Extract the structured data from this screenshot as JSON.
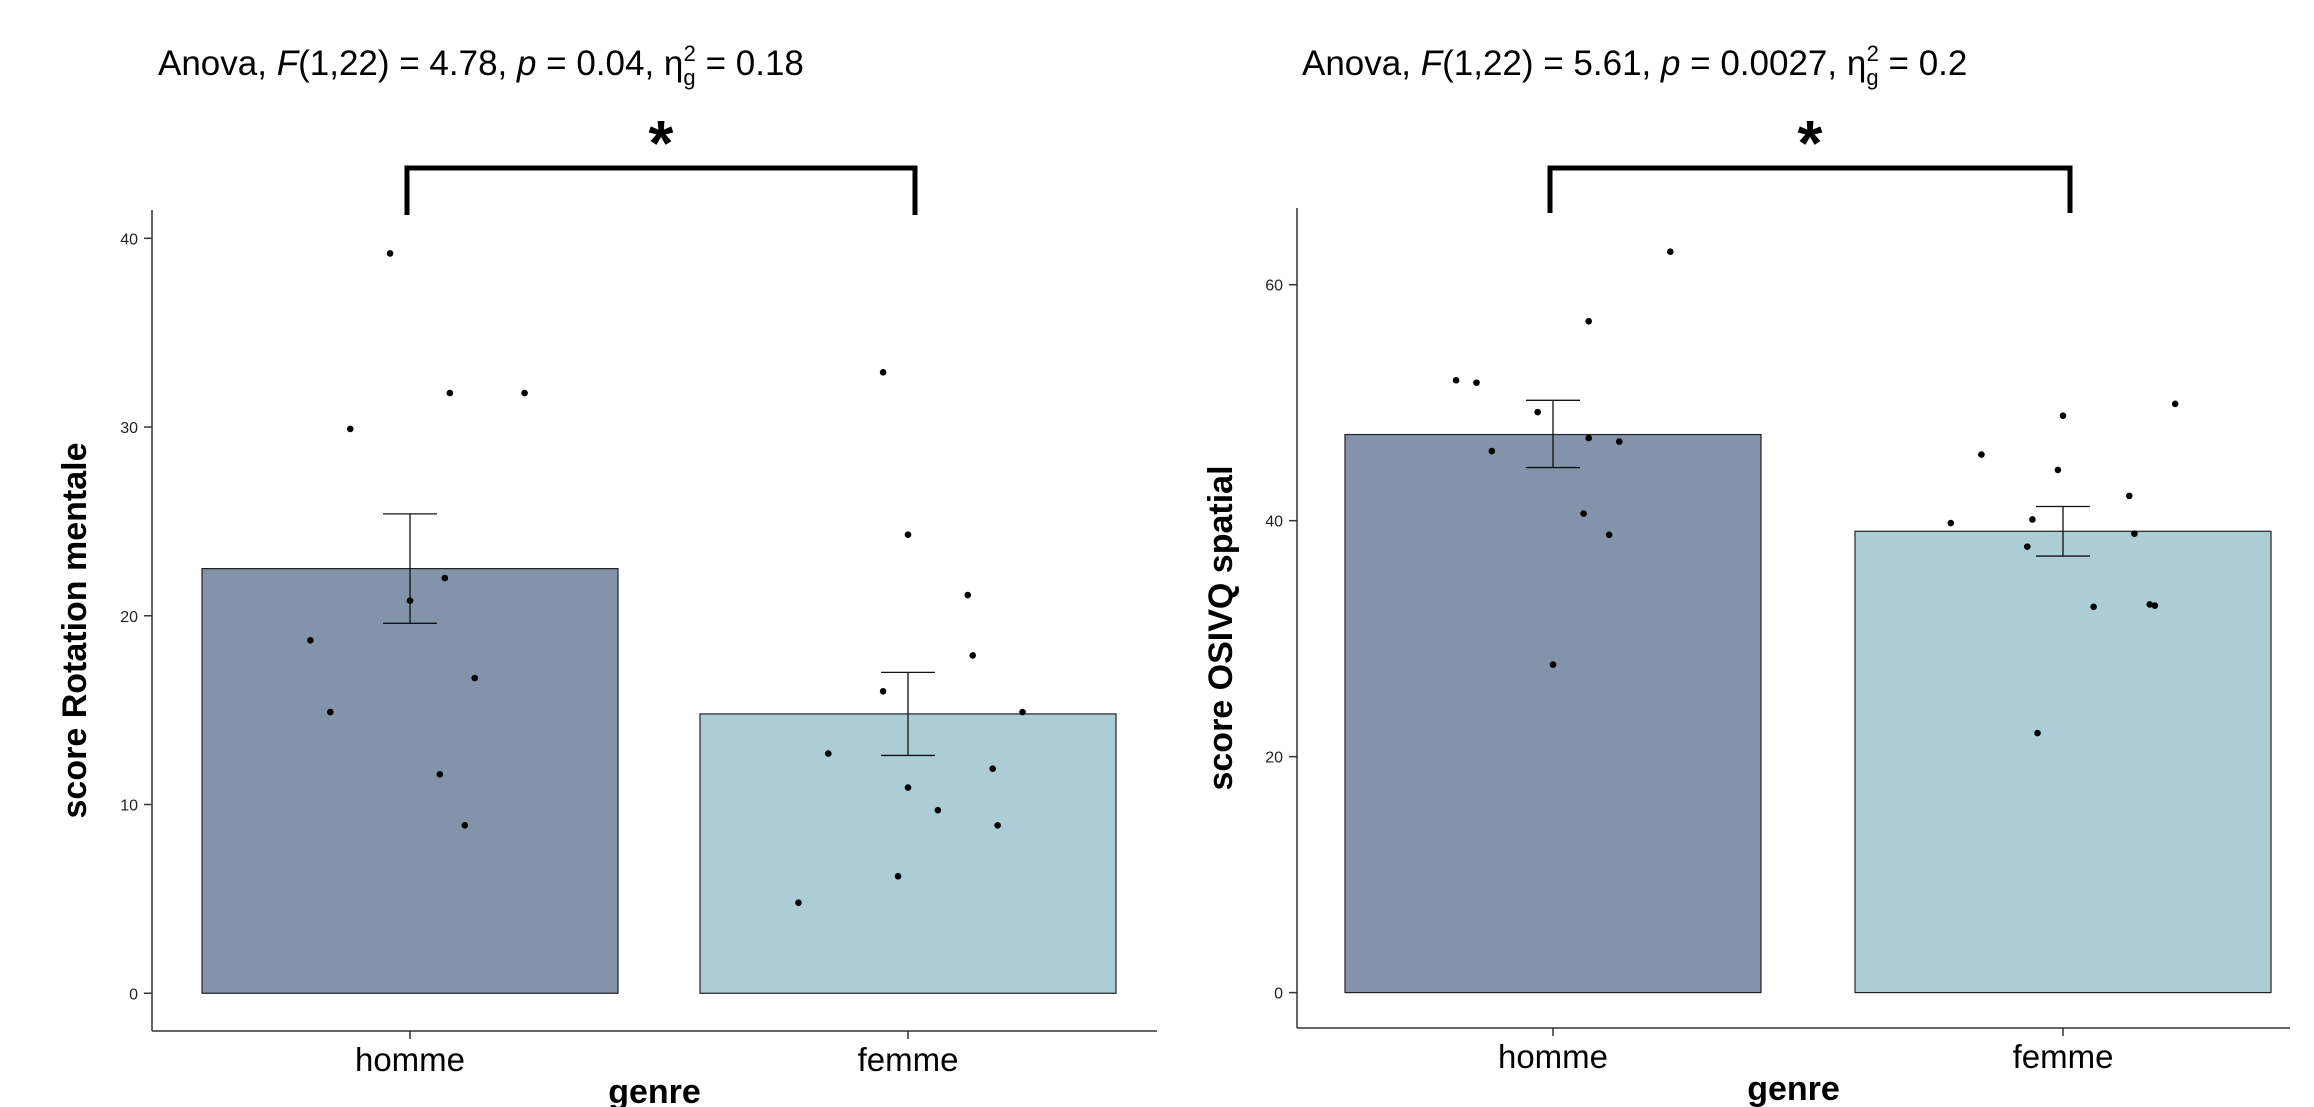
{
  "chart_data": [
    {
      "type": "bar",
      "title_parts": [
        "Anova, ",
        "F",
        "(1,22) = 4.78, ",
        "p",
        " = 0.04, η",
        "g",
        "2",
        " = 0.18"
      ],
      "xlabel": "genre",
      "ylabel": "score Rotation mentale",
      "categories": [
        "homme",
        "femme"
      ],
      "values": [
        22.5,
        14.8
      ],
      "error": [
        [
          19.6,
          25.4
        ],
        [
          12.6,
          17.0
        ]
      ],
      "colors": [
        "#8393AA",
        "#ADCDD6"
      ],
      "ylim": [
        -2,
        41.5
      ],
      "yticks": [
        0,
        10,
        20,
        30,
        40
      ],
      "significance": "*",
      "grid": false,
      "points": [
        {
          "x": -0.04,
          "y": 39.2
        },
        {
          "x": -0.12,
          "y": 29.9
        },
        {
          "x": 0.08,
          "y": 31.8
        },
        {
          "x": 0.23,
          "y": 31.8
        },
        {
          "x": 0.07,
          "y": 22.0
        },
        {
          "x": 0.0,
          "y": 20.8
        },
        {
          "x": -0.2,
          "y": 18.7
        },
        {
          "x": 0.13,
          "y": 16.7
        },
        {
          "x": -0.16,
          "y": 14.9
        },
        {
          "x": 0.06,
          "y": 11.6
        },
        {
          "x": 0.11,
          "y": 8.9
        },
        {
          "x": -0.05,
          "y": 32.9
        },
        {
          "x": 0.0,
          "y": 24.3
        },
        {
          "x": 0.12,
          "y": 21.1
        },
        {
          "x": 0.13,
          "y": 17.9
        },
        {
          "x": -0.05,
          "y": 16.0
        },
        {
          "x": 0.23,
          "y": 14.9
        },
        {
          "x": -0.16,
          "y": 12.7
        },
        {
          "x": 0.17,
          "y": 11.9
        },
        {
          "x": 0.0,
          "y": 10.9
        },
        {
          "x": 0.06,
          "y": 9.7
        },
        {
          "x": 0.18,
          "y": 8.9
        },
        {
          "x": -0.02,
          "y": 6.2
        },
        {
          "x": -0.22,
          "y": 4.8
        }
      ]
    },
    {
      "type": "bar",
      "title_parts": [
        "Anova, ",
        "F",
        "(1,22) = 5.61, ",
        "p",
        " = 0.0027, η",
        "g",
        "2",
        " = 0.2"
      ],
      "xlabel": "genre",
      "ylabel": "score OSIVQ spatial",
      "categories": [
        "homme",
        "femme"
      ],
      "values": [
        47.3,
        39.1
      ],
      "error": [
        [
          44.5,
          50.2
        ],
        [
          37.0,
          41.2
        ]
      ],
      "colors": [
        "#8393AA",
        "#ADCDD6"
      ],
      "ylim": [
        -3,
        66.5
      ],
      "yticks": [
        0,
        20,
        40,
        60
      ],
      "significance": "*",
      "grid": false,
      "points": [
        {
          "x": 0.23,
          "y": 62.8
        },
        {
          "x": 0.07,
          "y": 56.9
        },
        {
          "x": -0.19,
          "y": 51.9
        },
        {
          "x": -0.15,
          "y": 51.7
        },
        {
          "x": -0.03,
          "y": 49.2
        },
        {
          "x": 0.07,
          "y": 47.0
        },
        {
          "x": 0.13,
          "y": 46.7
        },
        {
          "x": -0.12,
          "y": 45.9
        },
        {
          "x": 0.06,
          "y": 40.6
        },
        {
          "x": 0.11,
          "y": 38.8
        },
        {
          "x": 0.0,
          "y": 27.8
        },
        {
          "x": 0.22,
          "y": 49.9
        },
        {
          "x": 0.0,
          "y": 48.9
        },
        {
          "x": -0.16,
          "y": 45.6
        },
        {
          "x": -0.01,
          "y": 44.3
        },
        {
          "x": 0.13,
          "y": 42.1
        },
        {
          "x": -0.06,
          "y": 40.1
        },
        {
          "x": -0.22,
          "y": 39.8
        },
        {
          "x": 0.14,
          "y": 38.9
        },
        {
          "x": -0.07,
          "y": 37.8
        },
        {
          "x": 0.17,
          "y": 32.9
        },
        {
          "x": 0.18,
          "y": 32.8
        },
        {
          "x": 0.06,
          "y": 32.7
        },
        {
          "x": -0.05,
          "y": 22.0
        }
      ]
    }
  ]
}
